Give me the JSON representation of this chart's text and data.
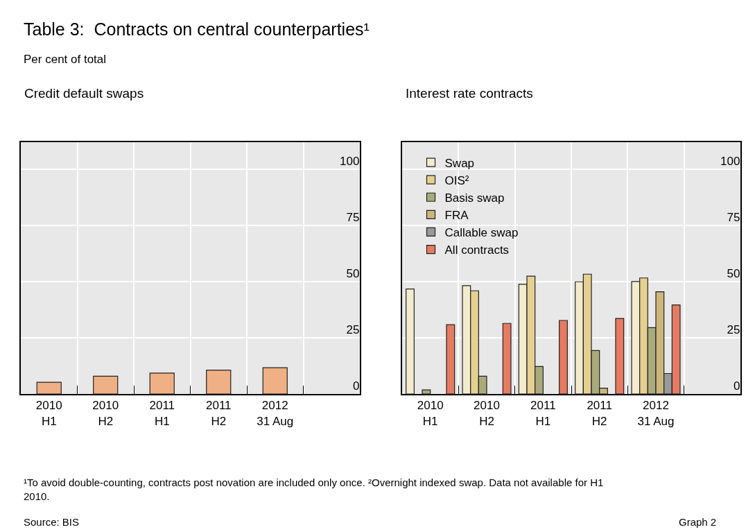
{
  "chart_data": [
    {
      "type": "bar",
      "title": "Credit default swaps",
      "categories": [
        "2010\nH1",
        "2010\nH2",
        "2011\nH1",
        "2011\nH2",
        "2012\n31 Aug"
      ],
      "series": [
        {
          "color": "#eeb084",
          "values": [
            5.2,
            7.9,
            9.3,
            10.6,
            11.7
          ]
        }
      ],
      "ylim": [
        0,
        112
      ],
      "yticks": [
        0,
        25,
        50,
        75,
        100
      ],
      "grid": true,
      "legend": false,
      "annotations": [
        "Table 3:  Contracts on central counterparties¹",
        "Per cent of total",
        "¹To avoid double-counting, contracts post novation are included only once. ²Overnight indexed swap. Data not available for H1 2010.",
        "Source: BIS",
        "Graph 2"
      ]
    },
    {
      "type": "bar",
      "title": "Interest rate contracts",
      "categories": [
        "2010\nH1",
        "2010\nH2",
        "2011\nH1",
        "2011\nH2",
        "2012\n31 Aug"
      ],
      "series": [
        {
          "name": "Swap",
          "color": "#f3ebcd",
          "values": [
            46.7,
            48.2,
            48.8,
            49.9,
            50.0
          ]
        },
        {
          "name": "OIS²",
          "color": "#e5d092",
          "values": [
            null,
            45.9,
            52.4,
            53.3,
            51.6
          ]
        },
        {
          "name": "Basis swap",
          "color": "#a9ab7c",
          "values": [
            1.8,
            7.9,
            12.2,
            19.3,
            29.5
          ]
        },
        {
          "name": "FRA",
          "color": "#ccb67d",
          "values": [
            null,
            null,
            null,
            2.6,
            45.5
          ]
        },
        {
          "name": "Callable swap",
          "color": "#999999",
          "values": [
            null,
            null,
            null,
            null,
            9.1
          ]
        },
        {
          "name": "All contracts",
          "color": "#e47b62",
          "values": [
            30.8,
            31.4,
            32.7,
            33.6,
            39.6
          ]
        }
      ],
      "ylim": [
        0,
        112
      ],
      "yticks": [
        0,
        25,
        50,
        75,
        100
      ],
      "grid": true,
      "legend": "top left"
    }
  ]
}
